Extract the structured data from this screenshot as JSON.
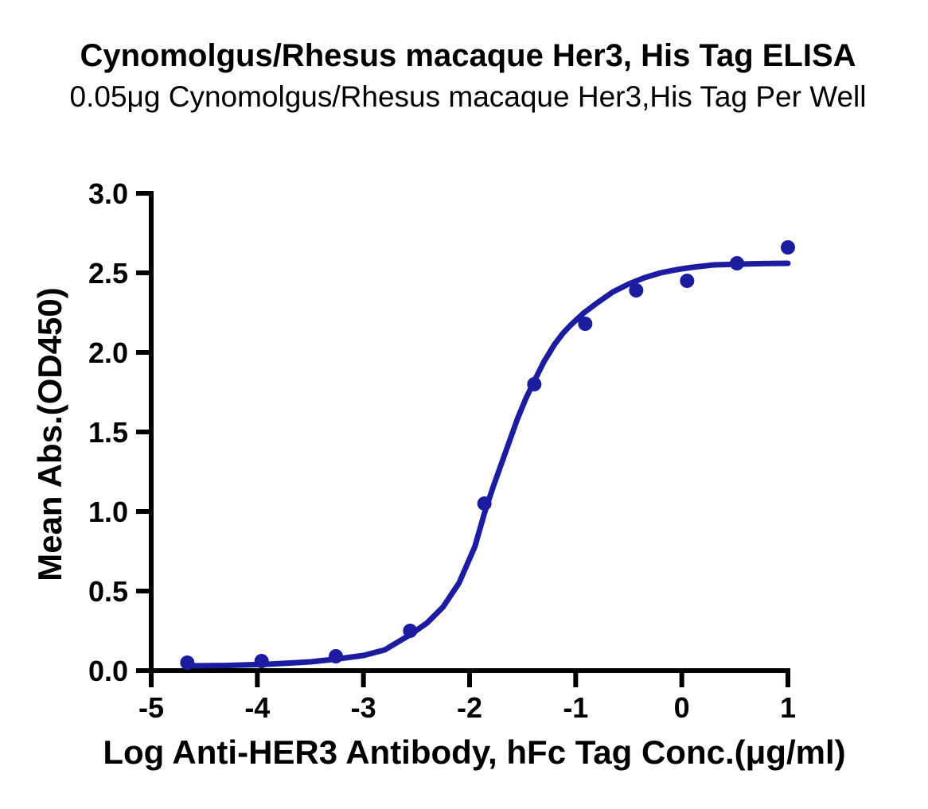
{
  "header": {
    "title": "Cynomolgus/Rhesus macaque Her3, His Tag ELISA",
    "subtitle": "0.05μg Cynomolgus/Rhesus macaque Her3,His Tag Per Well"
  },
  "colors": {
    "series_blue": "#1c1ca0",
    "axis_black": "#000000",
    "background": "#ffffff"
  },
  "chart_data": {
    "type": "scatter",
    "title": "Cynomolgus/Rhesus macaque Her3, His Tag ELISA",
    "subtitle": "0.05μg Cynomolgus/Rhesus macaque Her3,His Tag Per Well",
    "xlabel": "Log Anti-HER3 Antibody, hFc Tag Conc.(μg/ml)",
    "ylabel": "Mean Abs.(OD450)",
    "xlim": [
      -5,
      1
    ],
    "ylim": [
      0,
      3
    ],
    "x_tick_values": [
      -5,
      -4,
      -3,
      -2,
      -1,
      0,
      1
    ],
    "x_tick_labels": [
      "-5",
      "-4",
      "-3",
      "-2",
      "-1",
      "0",
      "1"
    ],
    "y_tick_values": [
      0.0,
      0.5,
      1.0,
      1.5,
      2.0,
      2.5,
      3.0
    ],
    "y_tick_labels": [
      "0.0",
      "0.5",
      "1.0",
      "1.5",
      "2.0",
      "2.5",
      "3.0"
    ],
    "grid": false,
    "legend_position": "none",
    "series": [
      {
        "name": "Mean Abs. (OD450) data points",
        "type": "scatter",
        "color": "#1c1ca0",
        "marker": "circle",
        "x": [
          -4.66,
          -3.96,
          -3.26,
          -2.56,
          -1.86,
          -1.39,
          -0.91,
          -0.43,
          0.05,
          0.52,
          1.0
        ],
        "y": [
          0.05,
          0.06,
          0.09,
          0.25,
          1.05,
          1.8,
          2.18,
          2.39,
          2.45,
          2.56,
          2.66
        ]
      },
      {
        "name": "Sigmoidal fit curve",
        "type": "line",
        "color": "#1c1ca0",
        "points": [
          [
            -4.66,
            0.03
          ],
          [
            -4.3,
            0.032
          ],
          [
            -3.9,
            0.04
          ],
          [
            -3.5,
            0.055
          ],
          [
            -3.26,
            0.072
          ],
          [
            -3.0,
            0.095
          ],
          [
            -2.8,
            0.13
          ],
          [
            -2.56,
            0.225
          ],
          [
            -2.4,
            0.3
          ],
          [
            -2.25,
            0.4
          ],
          [
            -2.1,
            0.55
          ],
          [
            -1.95,
            0.78
          ],
          [
            -1.86,
            0.99
          ],
          [
            -1.78,
            1.15
          ],
          [
            -1.7,
            1.3
          ],
          [
            -1.62,
            1.45
          ],
          [
            -1.55,
            1.58
          ],
          [
            -1.47,
            1.71
          ],
          [
            -1.39,
            1.82
          ],
          [
            -1.3,
            1.94
          ],
          [
            -1.2,
            2.05
          ],
          [
            -1.12,
            2.12
          ],
          [
            -1.05,
            2.17
          ],
          [
            -0.92,
            2.25
          ],
          [
            -0.8,
            2.31
          ],
          [
            -0.65,
            2.38
          ],
          [
            -0.5,
            2.43
          ],
          [
            -0.35,
            2.47
          ],
          [
            -0.2,
            2.5
          ],
          [
            -0.05,
            2.52
          ],
          [
            0.1,
            2.535
          ],
          [
            0.3,
            2.55
          ],
          [
            0.55,
            2.555
          ],
          [
            0.75,
            2.558
          ],
          [
            1.0,
            2.56
          ]
        ]
      }
    ]
  }
}
